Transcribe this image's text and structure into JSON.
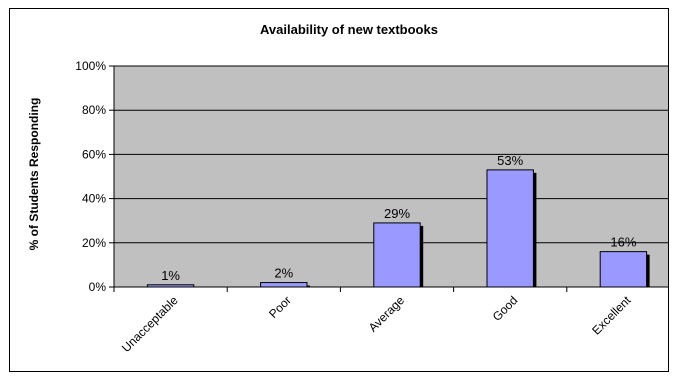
{
  "chart_data": {
    "type": "bar",
    "title": "Availability of new textbooks",
    "ylabel": "% of Students Responding",
    "xlabel": "",
    "categories": [
      "Unacceptable",
      "Poor",
      "Average",
      "Good",
      "Excellent"
    ],
    "values": [
      1,
      2,
      29,
      53,
      16
    ],
    "value_labels": [
      "1%",
      "2%",
      "29%",
      "53%",
      "16%"
    ],
    "ylim": [
      0,
      100
    ],
    "yticks": [
      0,
      20,
      40,
      60,
      80,
      100
    ],
    "ytick_labels": [
      "0%",
      "20%",
      "40%",
      "60%",
      "80%",
      "100%"
    ],
    "grid": true,
    "legend": "none",
    "colors": {
      "bar_fill": "#9999ff",
      "bar_stroke": "#000000",
      "bar_shadow": "#000000",
      "plot_background": "#c0c0c0",
      "gridline": "#000000"
    }
  }
}
